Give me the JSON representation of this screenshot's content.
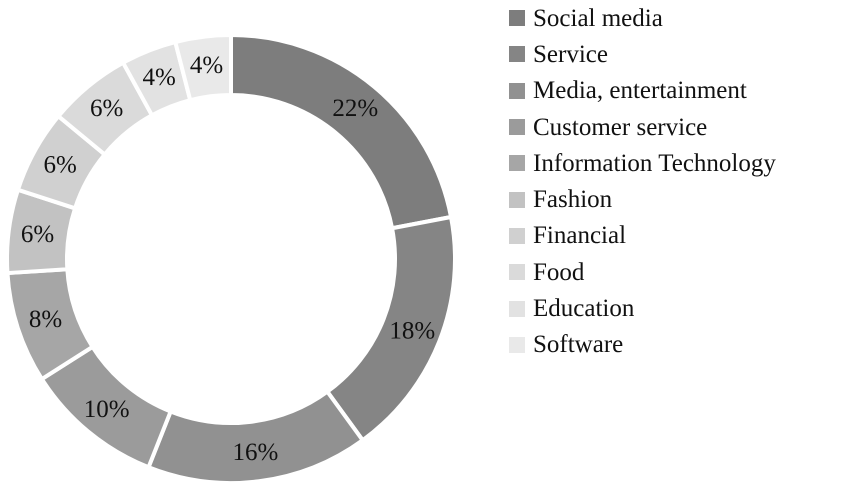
{
  "chart_data": {
    "type": "pie",
    "variant": "donut",
    "title": "",
    "legend_position": "right",
    "slices": [
      {
        "name": "Social media",
        "value": 22,
        "label": "22%",
        "color": "#7d7d7d"
      },
      {
        "name": "Service",
        "value": 18,
        "label": "18%",
        "color": "#858585"
      },
      {
        "name": "Media, entertainment",
        "value": 16,
        "label": "16%",
        "color": "#919191"
      },
      {
        "name": "Customer service",
        "value": 10,
        "label": "10%",
        "color": "#9b9b9b"
      },
      {
        "name": "Information Technology",
        "value": 8,
        "label": "8%",
        "color": "#a6a6a6"
      },
      {
        "name": "Fashion",
        "value": 6,
        "label": "6%",
        "color": "#c2c2c2"
      },
      {
        "name": "Financial",
        "value": 6,
        "label": "6%",
        "color": "#d0d0d0"
      },
      {
        "name": "Food",
        "value": 6,
        "label": "6%",
        "color": "#dadada"
      },
      {
        "name": "Education",
        "value": 4,
        "label": "4%",
        "color": "#e2e2e2"
      },
      {
        "name": "Software",
        "value": 4,
        "label": "4%",
        "color": "#e9e9e9"
      }
    ]
  }
}
